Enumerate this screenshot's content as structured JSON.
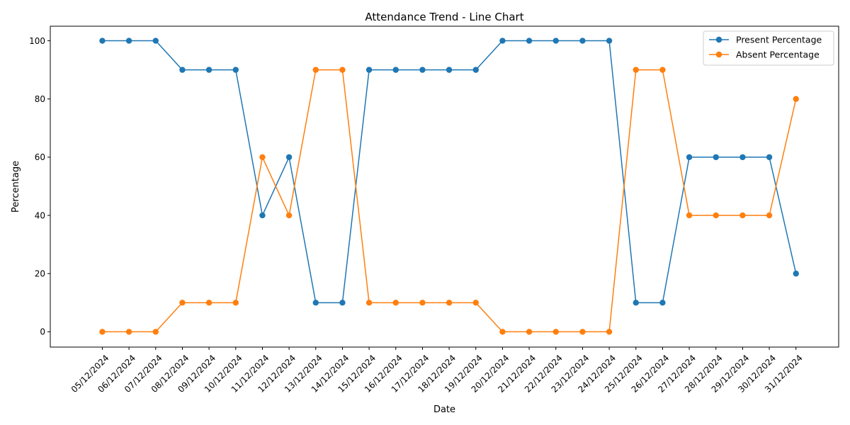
{
  "chart_data": {
    "type": "line",
    "title": "Attendance Trend - Line Chart",
    "xlabel": "Date",
    "ylabel": "Percentage",
    "categories": [
      "05/12/2024",
      "06/12/2024",
      "07/12/2024",
      "08/12/2024",
      "09/12/2024",
      "10/12/2024",
      "11/12/2024",
      "12/12/2024",
      "13/12/2024",
      "14/12/2024",
      "15/12/2024",
      "16/12/2024",
      "17/12/2024",
      "18/12/2024",
      "19/12/2024",
      "20/12/2024",
      "21/12/2024",
      "22/12/2024",
      "23/12/2024",
      "24/12/2024",
      "25/12/2024",
      "26/12/2024",
      "27/12/2024",
      "28/12/2024",
      "29/12/2024",
      "30/12/2024",
      "31/12/2024"
    ],
    "series": [
      {
        "name": "Present Percentage",
        "color": "#1f77b4",
        "values": [
          100,
          100,
          100,
          90,
          90,
          90,
          40,
          60,
          10,
          10,
          90,
          90,
          90,
          90,
          90,
          100,
          100,
          100,
          100,
          100,
          10,
          10,
          60,
          60,
          60,
          60,
          20
        ]
      },
      {
        "name": "Absent Percentage",
        "color": "#ff7f0e",
        "values": [
          0,
          0,
          0,
          10,
          10,
          10,
          60,
          40,
          90,
          90,
          10,
          10,
          10,
          10,
          10,
          0,
          0,
          0,
          0,
          0,
          90,
          90,
          40,
          40,
          40,
          40,
          80
        ]
      }
    ],
    "ylim": [
      -5.25,
      105
    ],
    "yticks": [
      0,
      20,
      40,
      60,
      80,
      100
    ],
    "grid": false,
    "legend_position": "top-right",
    "marker": "circle"
  }
}
